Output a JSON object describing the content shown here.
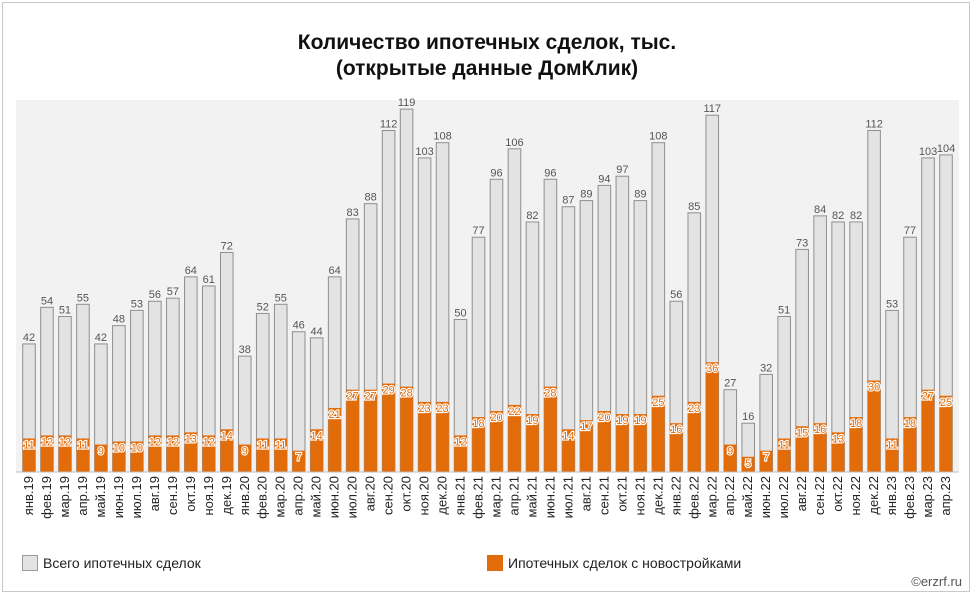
{
  "chart_data": {
    "type": "bar",
    "title": "Количество ипотечных сделок, тыс.",
    "subtitle": "(открытые данные ДомКлик)",
    "categories": [
      "янв.19",
      "фев.19",
      "мар.19",
      "апр.19",
      "май.19",
      "июн.19",
      "июл.19",
      "авг.19",
      "сен.19",
      "окт.19",
      "ноя.19",
      "дек.19",
      "янв.20",
      "фев.20",
      "мар.20",
      "апр.20",
      "май.20",
      "июн.20",
      "июл.20",
      "авг.20",
      "сен.20",
      "окт.20",
      "ноя.20",
      "дек.20",
      "янв.21",
      "фев.21",
      "мар.21",
      "апр.21",
      "май.21",
      "июн.21",
      "июл.21",
      "авг.21",
      "сен.21",
      "окт.21",
      "ноя.21",
      "дек.21",
      "янв.22",
      "фев.22",
      "мар.22",
      "апр.22",
      "май.22",
      "июн.22",
      "июл.22",
      "авг.22",
      "сен.22",
      "окт.22",
      "ноя.22",
      "дек.22",
      "янв.23",
      "фев.23",
      "мар.23",
      "апр.23"
    ],
    "series": [
      {
        "name": "Всего ипотечных сделок",
        "color": "#e3e3e3",
        "label_color": "#555555",
        "values": [
          42,
          54,
          51,
          55,
          42,
          48,
          53,
          56,
          57,
          64,
          61,
          72,
          38,
          52,
          55,
          46,
          44,
          64,
          83,
          88,
          112,
          119,
          103,
          108,
          50,
          77,
          96,
          106,
          82,
          96,
          87,
          89,
          94,
          97,
          89,
          108,
          56,
          85,
          117,
          27,
          16,
          32,
          51,
          73,
          84,
          82,
          82,
          112,
          53,
          77,
          103,
          104
        ]
      },
      {
        "name": "Ипотечных сделок с новостройками",
        "color": "#e36c0a",
        "label_color": "#e36c0a",
        "values": [
          11,
          12,
          12,
          11,
          9,
          10,
          10,
          12,
          12,
          13,
          12,
          14,
          9,
          11,
          11,
          7,
          14,
          21,
          27,
          27,
          29,
          28,
          23,
          23,
          12,
          18,
          20,
          22,
          19,
          28,
          14,
          17,
          20,
          19,
          19,
          25,
          16,
          23,
          36,
          9,
          5,
          7,
          11,
          15,
          16,
          13,
          18,
          30,
          11,
          18,
          27,
          25
        ]
      }
    ],
    "ylim": [
      0,
      122
    ],
    "legend": "bottom"
  },
  "watermark": "©erzrf.ru"
}
